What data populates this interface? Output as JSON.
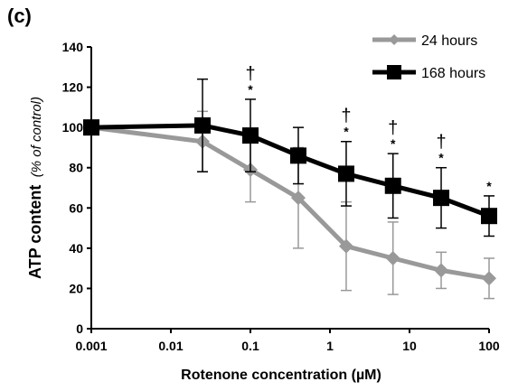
{
  "panel_label": "(c)",
  "chart_data": {
    "type": "line",
    "title": "",
    "xlabel": "Rotenone concentration (µM)",
    "ylabel_main": "ATP content",
    "ylabel_sub": "(% of control)",
    "x_scale": "log",
    "xlim": [
      0.001,
      100
    ],
    "ylim": [
      0,
      140
    ],
    "x_ticks": [
      "0.001",
      "0.01",
      "0.1",
      "1",
      "10",
      "100"
    ],
    "x_tick_values": [
      0.001,
      0.01,
      0.1,
      1,
      10,
      100
    ],
    "y_ticks": [
      "0",
      "20",
      "40",
      "60",
      "80",
      "100",
      "120",
      "140"
    ],
    "y_tick_values": [
      0,
      20,
      40,
      60,
      80,
      100,
      120,
      140
    ],
    "grid": false,
    "legend_position": "top-right",
    "x": [
      0.001,
      0.025,
      0.1,
      0.4,
      1.6,
      6.2,
      25,
      100
    ],
    "series": [
      {
        "name": "24 hours",
        "color": "#999999",
        "marker": "diamond",
        "values": [
          100,
          93,
          79,
          65,
          41,
          35,
          29,
          25
        ],
        "error": [
          null,
          15,
          16,
          25,
          22,
          18,
          9,
          10
        ]
      },
      {
        "name": "168 hours",
        "color": "#000000",
        "marker": "square",
        "values": [
          100,
          101,
          96,
          86,
          77,
          71,
          65,
          56
        ],
        "error": [
          null,
          23,
          18,
          14,
          16,
          16,
          15,
          10
        ]
      }
    ],
    "annotations": [
      {
        "x": 0.1,
        "dagger": "†",
        "star": "*"
      },
      {
        "x": 1.6,
        "dagger": "†",
        "star": "*"
      },
      {
        "x": 6.2,
        "dagger": "†",
        "star": "*"
      },
      {
        "x": 25,
        "dagger": "†",
        "star": "*"
      },
      {
        "x": 100,
        "dagger": "",
        "star": "*"
      }
    ]
  }
}
